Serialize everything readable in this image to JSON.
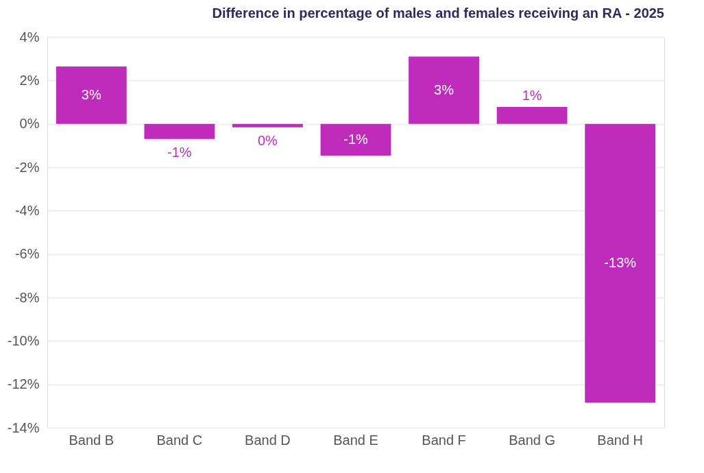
{
  "chart_data": {
    "type": "bar",
    "title": "Difference in percentage of males and females receiving an RA - 2025",
    "categories": [
      "Band B",
      "Band C",
      "Band D",
      "Band E",
      "Band F",
      "Band G",
      "Band H"
    ],
    "values": [
      2.64,
      -0.7,
      -0.16,
      -1.46,
      3.1,
      0.78,
      -12.85
    ],
    "value_labels": [
      "3%",
      "-1%",
      "0%",
      "-1%",
      "3%",
      "1%",
      "-13%"
    ],
    "color": "#bf2bbb",
    "ylim": [
      -14,
      4
    ],
    "yticks": [
      {
        "value": -14,
        "label": "-14%"
      },
      {
        "value": -12,
        "label": "-12%"
      },
      {
        "value": -10,
        "label": "-10%"
      },
      {
        "value": -8,
        "label": "-8%"
      },
      {
        "value": -6,
        "label": "-6%"
      },
      {
        "value": -4,
        "label": "-4%"
      },
      {
        "value": -2,
        "label": "-2%"
      },
      {
        "value": 0,
        "label": "0%"
      },
      {
        "value": 2,
        "label": "2%"
      },
      {
        "value": 4,
        "label": "4%"
      }
    ],
    "grid": "y"
  }
}
